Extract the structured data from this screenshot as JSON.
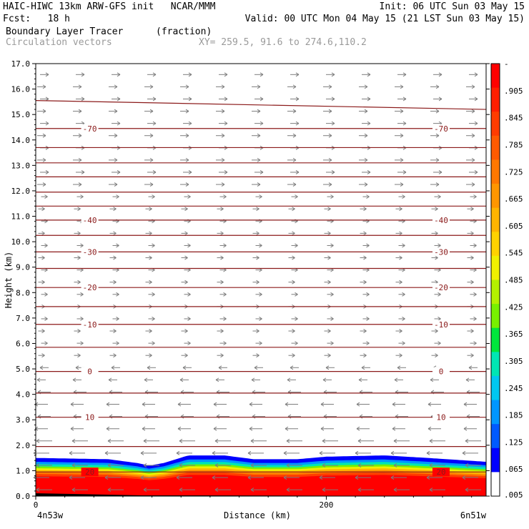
{
  "header": {
    "line1_left": "HAIC-HIWC 13km ARW-GFS init   NCAR/MMM",
    "line1_right": "Init: 06 UTC Sun 03 May 15",
    "line2_left": "Fcst:   18 h",
    "line2_right": "Valid: 00 UTC Mon 04 May 15 (21 LST Sun 03 May 15)",
    "field_name": "Boundary Layer Tracer",
    "field_units": "(fraction)",
    "overlay_name": "Circulation vectors",
    "xsec_endpoints": "XY= 259.5, 91.6 to 274.6,110.2"
  },
  "chart_data": {
    "type": "heatmap",
    "title": "Boundary Layer Tracer",
    "ylabel": "Height (km)",
    "xlabel": "Distance (km)",
    "ylim": [
      0.0,
      17.0
    ],
    "xlim": [
      0,
      310
    ],
    "yticks": [
      "0.0",
      "1.0",
      "2.0",
      "3.0",
      "4.0",
      "5.0",
      "6.0",
      "7.0",
      "8.0",
      "9.0",
      "10.0",
      "11.0",
      "12.0",
      "13.0",
      "14.0",
      "15.0",
      "16.0",
      "17.0"
    ],
    "xticks": [
      {
        "value": 0,
        "label": "0"
      },
      {
        "value": 200,
        "label": "200"
      }
    ],
    "x_end_labels": {
      "left": "4n53w",
      "right": "6n51w"
    },
    "colorbar": {
      "labels": [
        "-",
        ".905",
        ".845",
        ".785",
        ".725",
        ".665",
        ".605",
        ".545",
        ".485",
        ".425",
        ".365",
        ".305",
        ".245",
        ".185",
        ".125",
        ".065",
        ".005"
      ],
      "colors": [
        "#ff0000",
        "#ff1e00",
        "#ff3c00",
        "#ff5a00",
        "#ff7800",
        "#ff9600",
        "#ffb400",
        "#ffd200",
        "#f0f000",
        "#b4f000",
        "#78f000",
        "#00e63c",
        "#00e6b4",
        "#00c8f0",
        "#0096ff",
        "#005aff",
        "#0000ff",
        "#ffffff"
      ]
    },
    "temperature_contours": [
      {
        "label": "-70",
        "height": 14.45
      },
      {
        "label": "-40",
        "height": 10.85
      },
      {
        "label": "-30",
        "height": 9.6
      },
      {
        "label": "-20",
        "height": 8.2
      },
      {
        "label": "-10",
        "height": 6.75
      },
      {
        "label": "0",
        "height": 4.9
      },
      {
        "label": "10",
        "height": 3.1
      },
      {
        "label": "20",
        "height": 0.95
      }
    ],
    "other_contour_heights": [
      15.55,
      13.7,
      13.1,
      12.55,
      11.95,
      11.4,
      10.25,
      8.95,
      7.45,
      5.85,
      4.05,
      1.95
    ],
    "tracer_top_km": [
      {
        "x": 0,
        "z": 1.5
      },
      {
        "x": 50,
        "z": 1.45
      },
      {
        "x": 70,
        "z": 1.3
      },
      {
        "x": 78,
        "z": 1.2
      },
      {
        "x": 88,
        "z": 1.3
      },
      {
        "x": 105,
        "z": 1.6
      },
      {
        "x": 130,
        "z": 1.6
      },
      {
        "x": 150,
        "z": 1.45
      },
      {
        "x": 180,
        "z": 1.45
      },
      {
        "x": 200,
        "z": 1.55
      },
      {
        "x": 240,
        "z": 1.6
      },
      {
        "x": 270,
        "z": 1.5
      },
      {
        "x": 310,
        "z": 1.35
      }
    ],
    "wind_vectors": [
      {
        "zmin": 0.0,
        "zmax": 5.5,
        "direction": "westward"
      },
      {
        "zmin": 5.5,
        "zmax": 17.0,
        "direction": "eastward"
      }
    ]
  }
}
